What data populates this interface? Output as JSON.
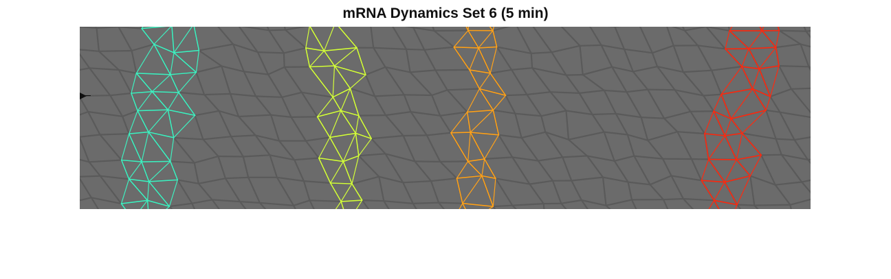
{
  "figure": {
    "title": "mRNA Dynamics Set 6 (5 min)"
  },
  "colors": {
    "background": "#6b6b6b",
    "membrane": "#5a5a5a",
    "stripe_1": "#3ff0c0",
    "stripe_2": "#d4ff3a",
    "stripe_3": "#ffa21a",
    "stripe_4": "#ff2a10"
  }
}
